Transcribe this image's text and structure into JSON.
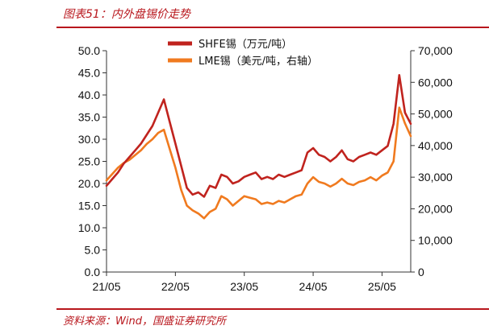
{
  "header": {
    "figure_title": "图表51：内外盘锡价走势"
  },
  "footer": {
    "source": "资料来源：Wind，国盛证券研究所"
  },
  "colors": {
    "accent": "#b8161c",
    "shfe": "#c0231e",
    "lme": "#f07a1f"
  },
  "chart_data": {
    "type": "line",
    "title": "",
    "xlabel": "",
    "ylabel_left": "",
    "ylabel_right": "",
    "x_ticks": [
      "21/05",
      "22/05",
      "23/05",
      "24/05",
      "25/05"
    ],
    "x_range": [
      "2021-05",
      "2025-10"
    ],
    "ylim_left": [
      0,
      50
    ],
    "ylim_right": [
      0,
      70000
    ],
    "y_ticks_left": [
      "50.0",
      "45.0",
      "40.0",
      "35.0",
      "30.0",
      "25.0",
      "20.0",
      "15.0",
      "10.0",
      "5.0",
      "0.0"
    ],
    "y_ticks_right": [
      "70,000",
      "60,000",
      "50,000",
      "40,000",
      "30,000",
      "20,000",
      "10,000",
      "0"
    ],
    "legend_position": "top",
    "series": [
      {
        "name": "SHFE锡（万元/吨）",
        "axis": "left",
        "x": [
          "2021-05",
          "2021-06",
          "2021-07",
          "2021-08",
          "2021-09",
          "2021-10",
          "2021-11",
          "2021-12",
          "2022-01",
          "2022-02",
          "2022-03",
          "2022-04",
          "2022-05",
          "2022-06",
          "2022-07",
          "2022-08",
          "2022-09",
          "2022-10",
          "2022-11",
          "2022-12",
          "2023-01",
          "2023-02",
          "2023-03",
          "2023-04",
          "2023-05",
          "2023-06",
          "2023-07",
          "2023-08",
          "2023-09",
          "2023-10",
          "2023-11",
          "2023-12",
          "2024-01",
          "2024-02",
          "2024-03",
          "2024-04",
          "2024-05",
          "2024-06",
          "2024-07",
          "2024-08",
          "2024-09",
          "2024-10",
          "2024-11",
          "2024-12",
          "2025-01",
          "2025-02",
          "2025-03",
          "2025-04",
          "2025-05",
          "2025-06",
          "2025-07",
          "2025-08",
          "2025-09",
          "2025-10"
        ],
        "values": [
          19.5,
          21.0,
          22.5,
          24.5,
          26.0,
          27.5,
          29.0,
          31.0,
          33.0,
          36.0,
          39.0,
          34.0,
          29.0,
          24.0,
          19.0,
          17.5,
          18.0,
          17.0,
          19.5,
          19.0,
          22.0,
          21.5,
          20.0,
          20.5,
          21.5,
          22.0,
          22.5,
          21.0,
          21.5,
          21.0,
          22.0,
          21.5,
          22.0,
          22.5,
          23.0,
          27.0,
          28.0,
          26.5,
          26.0,
          25.0,
          26.0,
          27.5,
          25.5,
          25.0,
          26.0,
          26.5,
          27.0,
          26.5,
          27.5,
          28.5,
          33.5,
          44.5,
          36.0,
          33.5
        ]
      },
      {
        "name": "LME锡（美元/吨，右轴）",
        "axis": "right",
        "x": [
          "2021-05",
          "2021-06",
          "2021-07",
          "2021-08",
          "2021-09",
          "2021-10",
          "2021-11",
          "2021-12",
          "2022-01",
          "2022-02",
          "2022-03",
          "2022-04",
          "2022-05",
          "2022-06",
          "2022-07",
          "2022-08",
          "2022-09",
          "2022-10",
          "2022-11",
          "2022-12",
          "2023-01",
          "2023-02",
          "2023-03",
          "2023-04",
          "2023-05",
          "2023-06",
          "2023-07",
          "2023-08",
          "2023-09",
          "2023-10",
          "2023-11",
          "2023-12",
          "2024-01",
          "2024-02",
          "2024-03",
          "2024-04",
          "2024-05",
          "2024-06",
          "2024-07",
          "2024-08",
          "2024-09",
          "2024-10",
          "2024-11",
          "2024-12",
          "2025-01",
          "2025-02",
          "2025-03",
          "2025-04",
          "2025-05",
          "2025-06",
          "2025-07",
          "2025-08",
          "2025-09",
          "2025-10"
        ],
        "values": [
          29000,
          31000,
          33000,
          34500,
          35500,
          37000,
          38500,
          40500,
          42000,
          44000,
          45000,
          39000,
          33000,
          26000,
          21000,
          19500,
          18500,
          17000,
          19000,
          20000,
          24000,
          23000,
          21000,
          22500,
          24000,
          23500,
          23000,
          21500,
          22000,
          21500,
          22500,
          22000,
          23000,
          24000,
          24500,
          28000,
          30000,
          28500,
          28000,
          27000,
          28000,
          29500,
          28000,
          27500,
          28500,
          29000,
          30000,
          29000,
          30500,
          31500,
          35000,
          52000,
          47000,
          43000
        ]
      }
    ]
  }
}
